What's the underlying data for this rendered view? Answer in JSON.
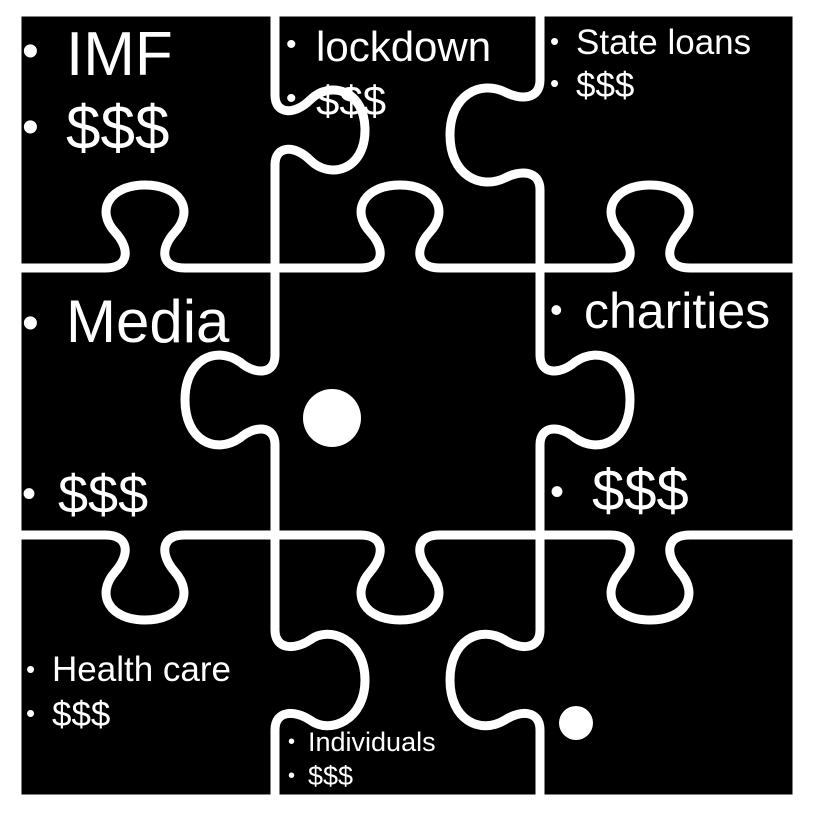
{
  "colors": {
    "piece_fill": "#000000",
    "gap_color": "#ffffff",
    "text_color": "#ffffff"
  },
  "bullet": "•",
  "pieces": {
    "imf": {
      "label": "IMF",
      "amount": "$$$"
    },
    "lockdown": {
      "label": "lockdown",
      "amount": "$$$"
    },
    "state_loans": {
      "label": "State loans",
      "amount": "$$$"
    },
    "media": {
      "label": "Media",
      "amount": "$$$"
    },
    "charities": {
      "label": "charities",
      "amount": "$$$"
    },
    "health_care": {
      "label": "Health care",
      "amount": "$$$"
    },
    "individuals": {
      "label": "Individuals",
      "amount": "$$$"
    }
  }
}
